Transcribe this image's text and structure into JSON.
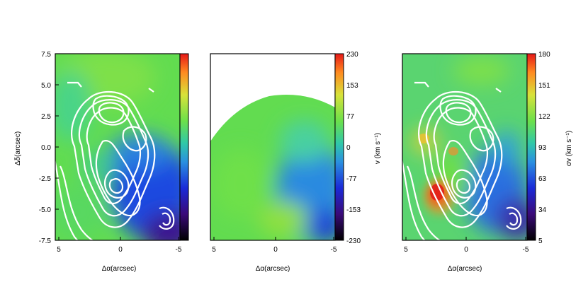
{
  "figure": {
    "panels": [
      {
        "id": "panel-a",
        "xlabel": "Δα(arcsec)",
        "ylabel": "Δδ(arcsec)",
        "xticks": [
          "5",
          "0",
          "-5"
        ],
        "yticks": [
          "7.5",
          "5.0",
          "2.5",
          "0.0",
          "-2.5",
          "-5.0",
          "-7.5"
        ],
        "colorbar_ticks": []
      },
      {
        "id": "panel-b",
        "xlabel": "Δα(arcsec)",
        "ylabel": "",
        "xticks": [
          "5",
          "0",
          "-5"
        ],
        "yticks": [],
        "colorbar_label": "v (km s⁻¹)",
        "colorbar_ticks": [
          "230",
          "153",
          "77",
          "0",
          "-77",
          "-153",
          "-230"
        ]
      },
      {
        "id": "panel-c",
        "xlabel": "Δα(arcsec)",
        "ylabel": "",
        "xticks": [
          "5",
          "0",
          "-5"
        ],
        "yticks": [],
        "colorbar_label": "σv (km s⁻¹)",
        "colorbar_ticks": [
          "180",
          "151",
          "122",
          "93",
          "63",
          "34",
          "5"
        ]
      }
    ],
    "colors": {
      "contour": "#ffffff",
      "colormap": [
        "#000000",
        "#3a0a78",
        "#1a2ad8",
        "#2a90e0",
        "#30c8a8",
        "#6ce04a",
        "#d8e23a",
        "#ff8a20",
        "#e61818"
      ]
    }
  }
}
